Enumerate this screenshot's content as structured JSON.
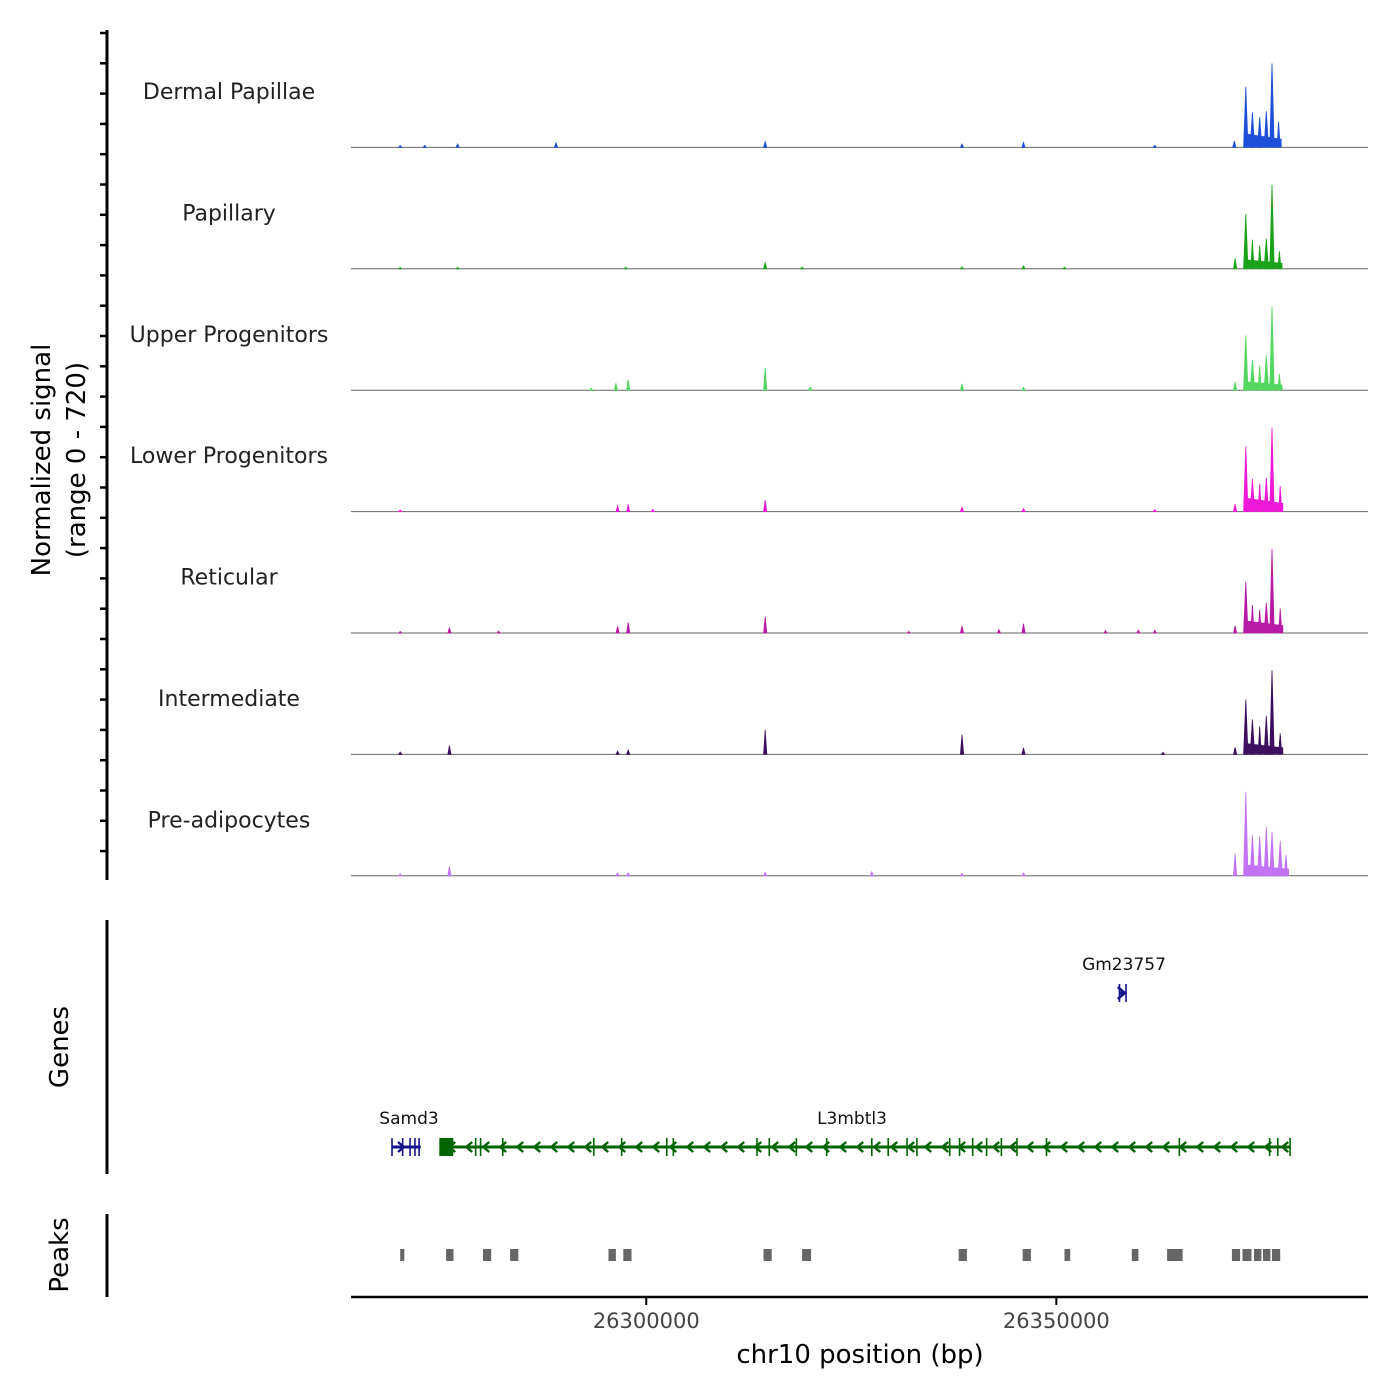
{
  "chart_data": {
    "type": "area",
    "description_free": true,
    "y_axis_title": "Normalized signal",
    "y_axis_range_label": "(range 0 - 720)",
    "ylim": [
      0,
      720
    ],
    "x_axis_title": "chr10 position (bp)",
    "xlim": [
      26264000,
      26388000
    ],
    "x_ticks": [
      26300000,
      26350000
    ],
    "x_tick_labels": [
      "26300000",
      "26350000"
    ],
    "tracks": [
      {
        "name": "Dermal Papillae",
        "color": "#1f4fd8",
        "peaks": [
          [
            26270000,
            16
          ],
          [
            26273000,
            18
          ],
          [
            26277000,
            30
          ],
          [
            26289000,
            40
          ],
          [
            26314500,
            50
          ],
          [
            26338500,
            28
          ],
          [
            26346000,
            42
          ],
          [
            26362000,
            18
          ],
          [
            26371700,
            55
          ],
          [
            26373100,
            520
          ],
          [
            26373900,
            300
          ],
          [
            26374800,
            260
          ],
          [
            26375600,
            310
          ],
          [
            26376300,
            720
          ],
          [
            26377100,
            220
          ]
        ]
      },
      {
        "name": "Papillary",
        "color": "#1aa21a",
        "peaks": [
          [
            26270000,
            12
          ],
          [
            26277000,
            12
          ],
          [
            26297500,
            14
          ],
          [
            26314500,
            55
          ],
          [
            26319000,
            14
          ],
          [
            26338500,
            16
          ],
          [
            26346000,
            26
          ],
          [
            26351000,
            14
          ],
          [
            26371800,
            90
          ],
          [
            26373100,
            470
          ],
          [
            26373900,
            250
          ],
          [
            26374800,
            200
          ],
          [
            26375600,
            260
          ],
          [
            26376300,
            720
          ],
          [
            26377200,
            150
          ]
        ]
      },
      {
        "name": "Upper Progenitors",
        "color": "#52d65f",
        "peaks": [
          [
            26293300,
            18
          ],
          [
            26296300,
            60
          ],
          [
            26297800,
            90
          ],
          [
            26314500,
            190
          ],
          [
            26320000,
            28
          ],
          [
            26338500,
            55
          ],
          [
            26346000,
            26
          ],
          [
            26371800,
            70
          ],
          [
            26373100,
            470
          ],
          [
            26373900,
            260
          ],
          [
            26374800,
            210
          ],
          [
            26375600,
            300
          ],
          [
            26376300,
            720
          ],
          [
            26377200,
            140
          ]
        ]
      },
      {
        "name": "Lower Progenitors",
        "color": "#ee18d8",
        "peaks": [
          [
            26270000,
            14
          ],
          [
            26296500,
            50
          ],
          [
            26297800,
            60
          ],
          [
            26300800,
            20
          ],
          [
            26314500,
            100
          ],
          [
            26338500,
            38
          ],
          [
            26346000,
            26
          ],
          [
            26362000,
            18
          ],
          [
            26371800,
            65
          ],
          [
            26373100,
            560
          ],
          [
            26373900,
            280
          ],
          [
            26374800,
            240
          ],
          [
            26375600,
            290
          ],
          [
            26376300,
            720
          ],
          [
            26377300,
            220
          ]
        ]
      },
      {
        "name": "Reticular",
        "color": "#b61aa6",
        "peaks": [
          [
            26270000,
            14
          ],
          [
            26276000,
            45
          ],
          [
            26282000,
            16
          ],
          [
            26296500,
            55
          ],
          [
            26297800,
            90
          ],
          [
            26314500,
            140
          ],
          [
            26332000,
            14
          ],
          [
            26338500,
            60
          ],
          [
            26343000,
            30
          ],
          [
            26346000,
            80
          ],
          [
            26356000,
            20
          ],
          [
            26360000,
            24
          ],
          [
            26362000,
            22
          ],
          [
            26371800,
            60
          ],
          [
            26373100,
            440
          ],
          [
            26373900,
            240
          ],
          [
            26374800,
            200
          ],
          [
            26375600,
            260
          ],
          [
            26376300,
            720
          ],
          [
            26377300,
            210
          ]
        ]
      },
      {
        "name": "Intermediate",
        "color": "#3d0f5e",
        "peaks": [
          [
            26270000,
            20
          ],
          [
            26276000,
            75
          ],
          [
            26296500,
            28
          ],
          [
            26297800,
            38
          ],
          [
            26314500,
            210
          ],
          [
            26338500,
            170
          ],
          [
            26346000,
            55
          ],
          [
            26363000,
            18
          ],
          [
            26371800,
            60
          ],
          [
            26373100,
            470
          ],
          [
            26373900,
            300
          ],
          [
            26374800,
            240
          ],
          [
            26375600,
            330
          ],
          [
            26376300,
            720
          ],
          [
            26377300,
            180
          ]
        ]
      },
      {
        "name": "Pre-adipocytes",
        "color": "#c272f2",
        "peaks": [
          [
            26270000,
            16
          ],
          [
            26276000,
            80
          ],
          [
            26296500,
            22
          ],
          [
            26297800,
            26
          ],
          [
            26314500,
            30
          ],
          [
            26327500,
            34
          ],
          [
            26338500,
            20
          ],
          [
            26346000,
            24
          ],
          [
            26371800,
            190
          ],
          [
            26373100,
            720
          ],
          [
            26373900,
            350
          ],
          [
            26374800,
            340
          ],
          [
            26375600,
            420
          ],
          [
            26376300,
            380
          ],
          [
            26377300,
            300
          ],
          [
            26378000,
            180
          ]
        ]
      }
    ],
    "genes_track_title": "Genes",
    "genes": [
      {
        "name": "Samd3",
        "strand": "+",
        "color": "#14148c",
        "start": 26269000,
        "end": 26272500,
        "row": 2,
        "exons": [
          26269000,
          26270300,
          26271200,
          26271800,
          26272300
        ]
      },
      {
        "name": "L3mbtl3",
        "strand": "-",
        "color": "#006400",
        "start": 26275000,
        "end": 26378500,
        "row": 2,
        "label_pos": 26314500,
        "exons": [
          26275500,
          26279200,
          26279800,
          26282500,
          26293600,
          26297000,
          26302500,
          26303300,
          26313500,
          26315000,
          26318300,
          26322000,
          26327500,
          26329500,
          26331800,
          26333000,
          26337000,
          26338200,
          26339800,
          26341500,
          26343300,
          26345200,
          26348800,
          26365000,
          26376000,
          26377000,
          26378500
        ]
      },
      {
        "name": "Gm23757",
        "strand": "+",
        "color": "#14148c",
        "start": 26357700,
        "end": 26358500,
        "row": 1,
        "exons": [
          26357700,
          26358500
        ]
      }
    ],
    "peaks_track_title": "Peaks",
    "peak_regions": [
      [
        26270000,
        26270500
      ],
      [
        26275600,
        26276500
      ],
      [
        26280100,
        26281100
      ],
      [
        26283400,
        26284400
      ],
      [
        26295400,
        26296300
      ],
      [
        26297200,
        26298200
      ],
      [
        26314300,
        26315300
      ],
      [
        26319000,
        26320100
      ],
      [
        26338100,
        26339100
      ],
      [
        26345900,
        26346900
      ],
      [
        26351000,
        26351700
      ],
      [
        26359200,
        26360000
      ],
      [
        26363500,
        26364400
      ],
      [
        26364400,
        26365400
      ],
      [
        26371400,
        26372400
      ],
      [
        26372700,
        26373800
      ],
      [
        26374100,
        26375000
      ],
      [
        26375200,
        26376100
      ],
      [
        26376300,
        26377300
      ]
    ]
  }
}
